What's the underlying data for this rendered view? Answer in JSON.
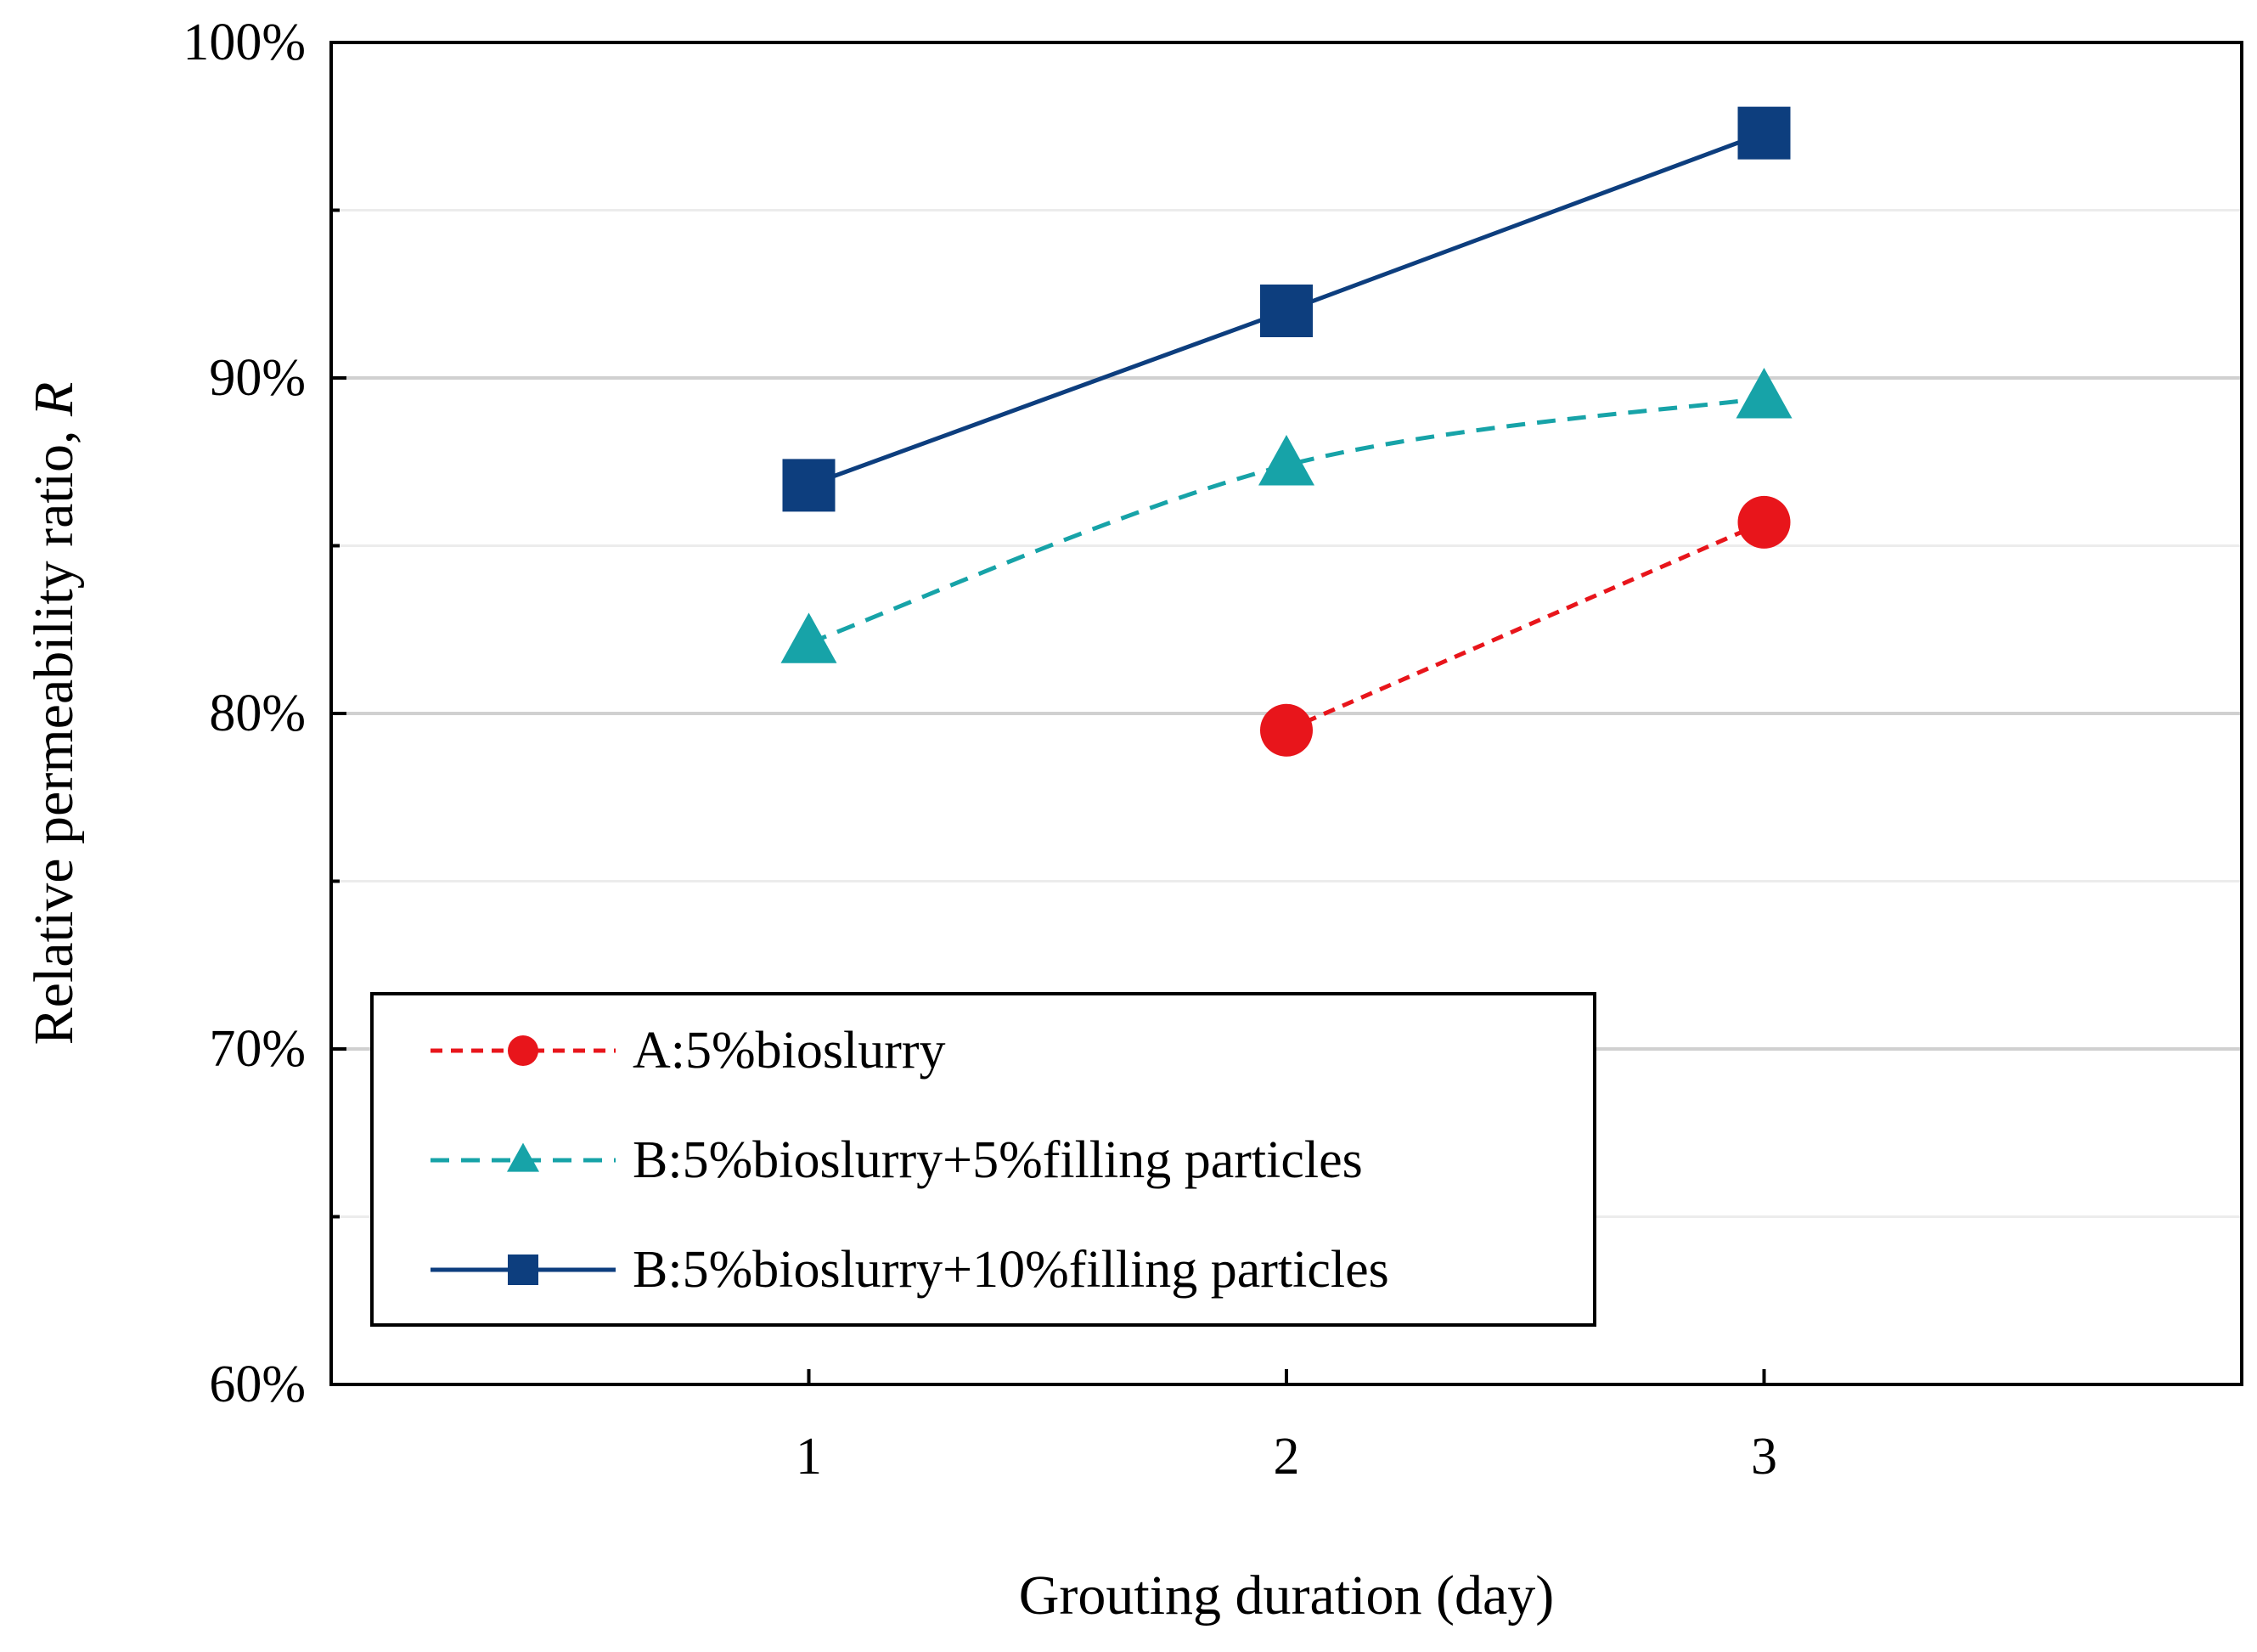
{
  "chart_data": {
    "type": "line",
    "xlabel": "Grouting duration (day)",
    "ylabel_prefix": "Relative permeability ratio, ",
    "ylabel_symbol": "R",
    "x_ticks": [
      "1",
      "2",
      "3"
    ],
    "x_range": [
      0,
      4
    ],
    "ylim": [
      0.6,
      1.0
    ],
    "y_ticks": [
      0.6,
      0.7,
      0.8,
      0.9,
      1.0
    ],
    "y_tick_labels": [
      "60%",
      "70%",
      "80%",
      "90%",
      "100%"
    ],
    "y_minor_grid": [
      0.65,
      0.75,
      0.85,
      0.95
    ],
    "grid": true,
    "legend_position": "bottom-left",
    "series": [
      {
        "name": "A:5%bioslurry",
        "color": "#e8151b",
        "marker": "circle",
        "line_style": "dashed",
        "x": [
          2,
          3
        ],
        "values": [
          0.795,
          0.857
        ]
      },
      {
        "name": "B:5%bioslurry+5%filling particles",
        "color": "#17a3a8",
        "marker": "triangle",
        "line_style": "dashed-curved",
        "x": [
          1,
          2,
          3
        ],
        "values": [
          0.821,
          0.874,
          0.894
        ]
      },
      {
        "name": "B:5%bioslurry+10%filling particles",
        "color": "#0d3e7e",
        "marker": "square",
        "line_style": "solid",
        "x": [
          1,
          2,
          3
        ],
        "values": [
          0.868,
          0.92,
          0.973
        ]
      }
    ]
  }
}
